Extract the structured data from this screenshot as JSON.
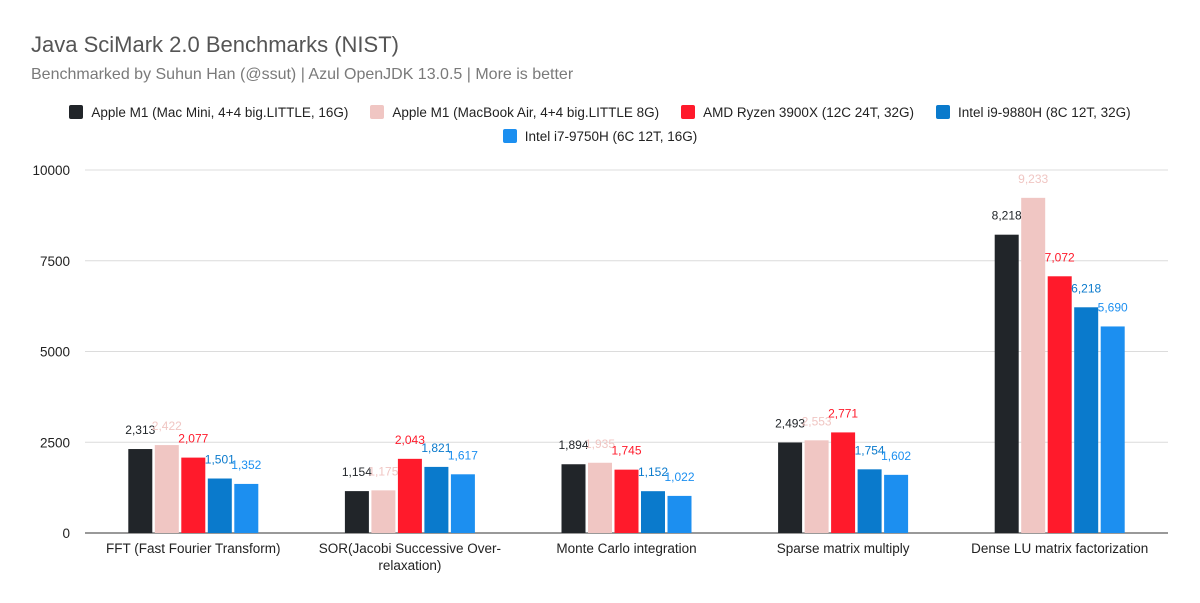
{
  "chart_data": {
    "type": "bar",
    "title": "Java SciMark 2.0 Benchmarks (NIST)",
    "subtitle": "Benchmarked by Suhun Han (@ssut) | Azul OpenJDK 13.0.5 | More is better",
    "categories": [
      [
        "FFT (Fast Fourier Transform)"
      ],
      [
        "SOR(Jacobi Successive Over-",
        "relaxation)"
      ],
      [
        "Monte Carlo integration"
      ],
      [
        "Sparse matrix multiply"
      ],
      [
        "Dense LU matrix factorization"
      ]
    ],
    "series": [
      {
        "name": "Apple M1 (Mac Mini, 4+4 big.LITTLE, 16G)",
        "color": "#212529",
        "values": [
          2313,
          1154,
          1894,
          2493,
          8218
        ],
        "labels": [
          "2,313",
          "1,154",
          "1,894",
          "2,493",
          "8,218"
        ]
      },
      {
        "name": "Apple M1 (MacBook Air, 4+4 big.LITTLE 8G)",
        "color": "#f0c6c3",
        "values": [
          2422,
          1175,
          1935,
          2553,
          9233
        ],
        "labels": [
          "2,422",
          "1,175",
          "1,935",
          "2,553",
          "9,233"
        ]
      },
      {
        "name": "AMD Ryzen 3900X (12C 24T, 32G)",
        "color": "#ff1a2b",
        "values": [
          2077,
          2043,
          1745,
          2771,
          7072
        ],
        "labels": [
          "2,077",
          "2,043",
          "1,745",
          "2,771",
          "7,072"
        ]
      },
      {
        "name": "Intel i9-9880H (8C 12T, 32G)",
        "color": "#0a7acc",
        "values": [
          1501,
          1821,
          1152,
          1754,
          6218
        ],
        "labels": [
          "1,501",
          "1,821",
          "1,152",
          "1,754",
          "6,218"
        ]
      },
      {
        "name": "Intel i7-9750H (6C 12T, 16G)",
        "color": "#1c8ff0",
        "values": [
          1352,
          1617,
          1022,
          1602,
          5690
        ],
        "labels": [
          "1,352",
          "1,617",
          "1,022",
          "1,602",
          "5,690"
        ]
      }
    ],
    "yticks": [
      0,
      2500,
      5000,
      7500,
      10000
    ],
    "ytick_labels": [
      "0",
      "2500",
      "5000",
      "7500",
      "10000"
    ],
    "ylim": [
      0,
      10000
    ],
    "grid": true,
    "legend_position": "top"
  }
}
